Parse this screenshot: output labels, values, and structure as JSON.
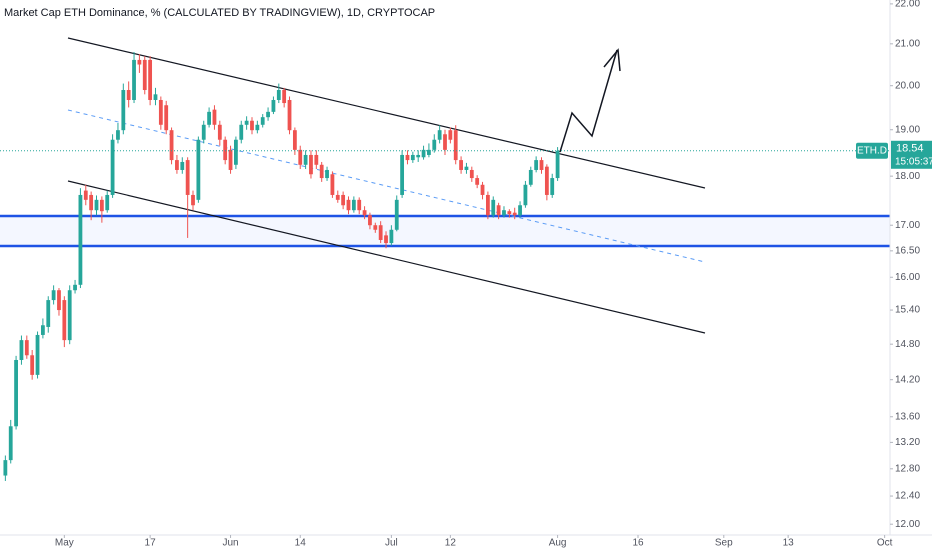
{
  "chart_data": {
    "type": "candlestick",
    "title": "Market Cap ETH Dominance, % (CALCULATED BY TRADINGVIEW), 1D, CRYPTOCAP",
    "symbol": "ETH.D",
    "countdown": "15:05:37",
    "up_color": "#26a69a",
    "down_color": "#ef5350",
    "log_scale": true,
    "x": [
      "04-20",
      "04-21",
      "04-22",
      "04-23",
      "04-24",
      "04-25",
      "04-26",
      "04-27",
      "04-28",
      "04-29",
      "04-30",
      "05-01",
      "05-02",
      "05-03",
      "05-04",
      "05-05",
      "05-06",
      "05-07",
      "05-08",
      "05-09",
      "05-10",
      "05-11",
      "05-12",
      "05-13",
      "05-14",
      "05-15",
      "05-16",
      "05-17",
      "05-18",
      "05-19",
      "05-20",
      "05-21",
      "05-22",
      "05-23",
      "05-24",
      "05-25",
      "05-26",
      "05-27",
      "05-28",
      "05-29",
      "05-30",
      "05-31",
      "06-01",
      "06-02",
      "06-03",
      "06-04",
      "06-05",
      "06-06",
      "06-07",
      "06-08",
      "06-09",
      "06-10",
      "06-11",
      "06-12",
      "06-13",
      "06-14",
      "06-15",
      "06-16",
      "06-17",
      "06-18",
      "06-19",
      "06-20",
      "06-21",
      "06-22",
      "06-23",
      "06-24",
      "06-25",
      "06-26",
      "06-27",
      "06-28",
      "06-29",
      "06-30",
      "07-01",
      "07-02",
      "07-03",
      "07-04",
      "07-05",
      "07-06",
      "07-07",
      "07-08",
      "07-09",
      "07-10",
      "07-11",
      "07-12",
      "07-13",
      "07-14",
      "07-15",
      "07-16",
      "07-17",
      "07-18",
      "07-19",
      "07-20",
      "07-21",
      "07-22",
      "07-23",
      "07-24",
      "07-25",
      "07-26",
      "07-27",
      "07-28",
      "07-29",
      "07-30",
      "07-31",
      "08-01"
    ],
    "open": [
      12.7,
      12.93,
      13.45,
      14.53,
      14.87,
      14.61,
      14.28,
      14.96,
      15.1,
      15.58,
      15.76,
      15.58,
      14.87,
      15.76,
      15.86,
      17.7,
      17.61,
      17.3,
      17.51,
      17.3,
      17.61,
      18.78,
      18.99,
      19.9,
      19.67,
      20.61,
      20.61,
      20.61,
      19.67,
      19.67,
      19.55,
      18.99,
      18.34,
      18.13,
      18.34,
      17.61,
      17.51,
      18.78,
      19.11,
      19.45,
      19.11,
      18.78,
      18.56,
      18.24,
      18.78,
      19.11,
      19.2,
      18.99,
      19.11,
      19.28,
      19.4,
      19.67,
      19.9,
      19.67,
      18.99,
      18.56,
      18.24,
      18.45,
      18.45,
      18.24,
      17.96,
      18.04,
      17.61,
      17.61,
      17.51,
      17.3,
      17.51,
      17.3,
      17.2,
      17.0,
      17.0,
      16.8,
      16.65,
      16.91,
      17.61,
      18.45,
      18.34,
      18.4,
      18.4,
      18.45,
      18.56,
      18.78,
      18.9,
      18.99,
      18.99,
      18.34,
      18.13,
      18.13,
      17.96,
      17.82,
      17.61,
      17.2,
      17.4,
      17.2,
      17.28,
      17.25,
      17.2,
      17.4,
      17.82,
      18.13,
      18.34,
      18.2,
      17.61,
      17.96
    ],
    "high": [
      13.0,
      13.55,
      14.6,
      14.95,
      14.95,
      14.7,
      15.02,
      15.25,
      15.65,
      15.85,
      15.8,
      15.65,
      15.85,
      15.95,
      17.75,
      17.82,
      17.68,
      17.6,
      17.58,
      17.7,
      18.9,
      19.15,
      20.05,
      20.1,
      20.8,
      20.75,
      20.7,
      20.7,
      19.95,
      19.75,
      19.65,
      19.05,
      18.45,
      18.4,
      18.4,
      17.7,
      18.85,
      19.2,
      19.5,
      19.55,
      19.2,
      18.85,
      18.65,
      18.85,
      19.2,
      19.3,
      19.28,
      19.2,
      19.35,
      19.5,
      19.75,
      20.05,
      19.95,
      19.75,
      19.05,
      18.65,
      18.55,
      18.55,
      18.55,
      18.3,
      18.2,
      18.1,
      17.7,
      17.68,
      17.58,
      17.58,
      17.56,
      17.38,
      17.25,
      17.05,
      17.08,
      16.88,
      17.0,
      17.6,
      18.55,
      18.55,
      18.52,
      18.55,
      18.65,
      18.7,
      18.9,
      19.1,
      19.0,
      19.05,
      19.1,
      18.42,
      18.28,
      18.2,
      18.02,
      17.88,
      17.68,
      17.58,
      17.45,
      17.38,
      17.32,
      17.35,
      17.48,
      17.9,
      18.2,
      18.42,
      18.4,
      18.25,
      18.05,
      18.62
    ],
    "low": [
      12.62,
      12.88,
      13.4,
      14.45,
      14.55,
      14.2,
      14.22,
      14.9,
      15.0,
      15.5,
      15.3,
      14.75,
      14.8,
      15.7,
      15.8,
      17.4,
      17.1,
      17.2,
      17.05,
      17.25,
      17.55,
      18.7,
      18.9,
      19.5,
      19.6,
      20.3,
      19.8,
      19.55,
      19.55,
      19.0,
      18.9,
      18.25,
      18.05,
      18.05,
      16.75,
      17.3,
      17.45,
      18.7,
      19.05,
      19.0,
      18.65,
      18.25,
      18.05,
      18.15,
      18.7,
      19.0,
      18.9,
      18.92,
      19.05,
      19.2,
      19.35,
      19.6,
      19.5,
      18.9,
      18.45,
      18.15,
      18.15,
      17.95,
      18.15,
      17.88,
      17.9,
      17.55,
      17.45,
      17.32,
      17.22,
      17.25,
      17.22,
      17.12,
      16.92,
      16.85,
      16.65,
      16.55,
      16.6,
      16.88,
      17.55,
      18.25,
      18.28,
      18.3,
      18.35,
      18.4,
      18.5,
      18.7,
      18.45,
      18.7,
      18.25,
      18.05,
      18.05,
      17.88,
      17.75,
      17.52,
      17.12,
      17.15,
      17.12,
      17.15,
      17.15,
      17.12,
      17.15,
      17.35,
      17.78,
      18.08,
      18.05,
      17.5,
      17.55,
      17.9
    ],
    "close": [
      12.93,
      13.45,
      14.53,
      14.87,
      14.61,
      14.28,
      14.96,
      15.13,
      15.58,
      15.76,
      15.4,
      14.87,
      15.76,
      15.86,
      17.61,
      17.51,
      17.3,
      17.51,
      17.28,
      17.61,
      18.78,
      18.99,
      19.9,
      19.67,
      20.61,
      20.5,
      19.9,
      19.67,
      19.8,
      19.11,
      18.99,
      18.34,
      18.13,
      18.3,
      17.61,
      17.4,
      18.78,
      19.11,
      19.4,
      19.11,
      18.78,
      18.34,
      18.13,
      18.78,
      19.11,
      19.2,
      18.99,
      19.11,
      19.28,
      19.4,
      19.67,
      19.9,
      19.6,
      18.99,
      18.56,
      18.24,
      18.45,
      18.04,
      18.24,
      17.96,
      18.13,
      17.61,
      17.51,
      17.4,
      17.3,
      17.51,
      17.3,
      17.2,
      17.0,
      16.91,
      16.71,
      16.65,
      16.91,
      17.51,
      18.45,
      18.34,
      18.45,
      18.45,
      18.56,
      18.56,
      18.78,
      18.99,
      18.56,
      18.78,
      18.34,
      18.13,
      18.2,
      17.96,
      17.82,
      17.61,
      17.2,
      17.51,
      17.2,
      17.3,
      17.22,
      17.2,
      17.4,
      17.82,
      18.13,
      18.34,
      18.13,
      17.61,
      17.96,
      18.54
    ],
    "xlim": [
      "04-19",
      "10-02"
    ],
    "xticks": [
      {
        "value": "05-01",
        "label": "May"
      },
      {
        "value": "05-17",
        "label": "17"
      },
      {
        "value": "06-01",
        "label": "Jun"
      },
      {
        "value": "06-14",
        "label": "14"
      },
      {
        "value": "07-01",
        "label": "Jul"
      },
      {
        "value": "07-12",
        "label": "12"
      },
      {
        "value": "08-01",
        "label": "Aug"
      },
      {
        "value": "08-16",
        "label": "16"
      },
      {
        "value": "09-01",
        "label": "Sep"
      },
      {
        "value": "09-13",
        "label": "13"
      },
      {
        "value": "10-01",
        "label": "Oct"
      }
    ],
    "ylim": [
      11.85,
      22.1
    ],
    "yticks": [
      {
        "value": 12,
        "label": "12.00"
      },
      {
        "value": 12.4,
        "label": "12.40"
      },
      {
        "value": 12.8,
        "label": "12.80"
      },
      {
        "value": 13.2,
        "label": "13.20"
      },
      {
        "value": 13.6,
        "label": "13.60"
      },
      {
        "value": 14.2,
        "label": "14.20"
      },
      {
        "value": 14.8,
        "label": "14.80"
      },
      {
        "value": 15.4,
        "label": "15.40"
      },
      {
        "value": 16,
        "label": "16.00"
      },
      {
        "value": 16.5,
        "label": "16.50"
      },
      {
        "value": 17,
        "label": "17.00"
      },
      {
        "value": 18,
        "label": "18.00"
      },
      {
        "value": 19,
        "label": "19.00"
      },
      {
        "value": 20,
        "label": "20.00"
      },
      {
        "value": 21,
        "label": "21.00"
      },
      {
        "value": 22,
        "label": "22.00"
      }
    ]
  }
}
